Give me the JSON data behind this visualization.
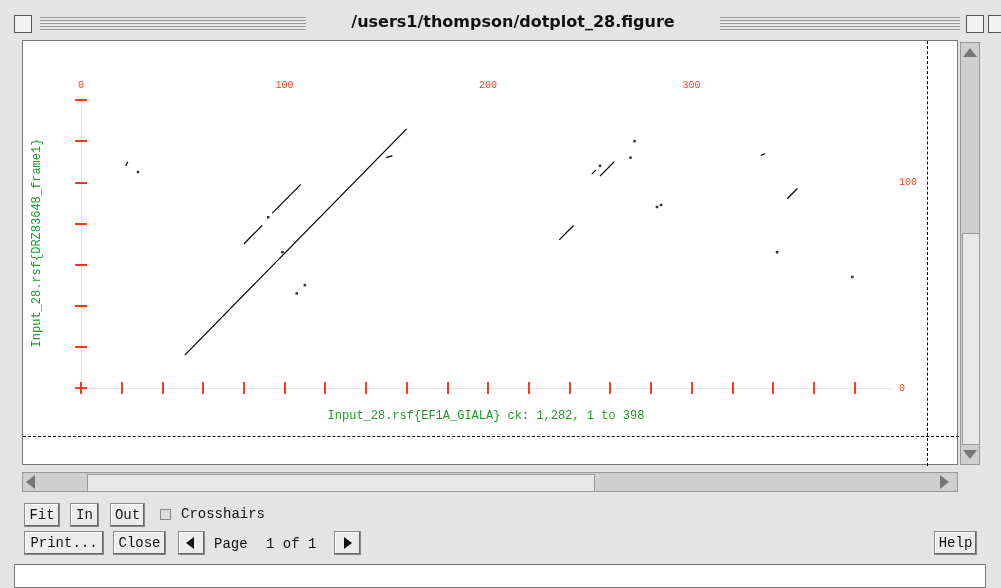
{
  "chart_data": {
    "type": "line",
    "title": "/users1/thompson/dotplot_28.figure",
    "xlabel": "Input_28.rsf{EF1A_GIALA} ck: 1,282, 1 to 398",
    "ylabel": "Input_28.rsf{DRZ83648_frame1}",
    "annotations": [
      "Fit",
      "In",
      "Out",
      "Crosshairs",
      "Print...",
      "Close",
      "Page",
      "1 of 1",
      "Help"
    ],
    "xlim": [
      0,
      398
    ],
    "xticks": [
      0,
      {
        "value": 20,
        "label": null
      },
      {
        "value": 40,
        "label": null
      },
      {
        "value": 60,
        "label": null
      },
      {
        "value": 80,
        "label": null
      },
      100,
      {
        "value": 120,
        "label": null
      },
      {
        "value": 140,
        "label": null
      },
      {
        "value": 160,
        "label": null
      },
      {
        "value": 180,
        "label": null
      },
      200,
      {
        "value": 220,
        "label": null
      },
      {
        "value": 240,
        "label": null
      },
      {
        "value": 260,
        "label": null
      },
      {
        "value": 280,
        "label": null
      },
      300,
      {
        "value": 320,
        "label": null
      },
      {
        "value": 340,
        "label": null
      },
      {
        "value": 360,
        "label": null
      },
      {
        "value": 380,
        "label": null
      }
    ],
    "ylim": [
      0,
      141
    ],
    "yticks": [
      0,
      {
        "value": 20,
        "label": null
      },
      {
        "value": 40,
        "label": null
      },
      {
        "value": 60,
        "label": null
      },
      {
        "value": 80,
        "label": null
      },
      100,
      {
        "value": 120,
        "label": null
      },
      {
        "value": 140,
        "label": null
      }
    ],
    "grid": false,
    "series": [
      {
        "color": "#000000",
        "x": [
          51,
          160
        ],
        "values": [
          16,
          126
        ]
      },
      {
        "color": "#000000",
        "x": [
          80,
          89
        ],
        "values": [
          70,
          79
        ]
      },
      {
        "color": "#000000",
        "x": [
          94,
          108
        ],
        "values": [
          85,
          99
        ]
      },
      {
        "color": "#000000",
        "x": [
          22,
          23
        ],
        "values": [
          108,
          110
        ]
      },
      {
        "color": "#000000",
        "x": [
          150,
          153
        ],
        "values": [
          112,
          113
        ]
      },
      {
        "color": "#000000",
        "x": [
          235,
          242
        ],
        "values": [
          72,
          79
        ]
      },
      {
        "color": "#000000",
        "x": [
          255,
          262
        ],
        "values": [
          103,
          110
        ]
      },
      {
        "color": "#000000",
        "x": [
          251,
          253
        ],
        "values": [
          104,
          106
        ]
      },
      {
        "color": "#000000",
        "x": [
          334,
          336
        ],
        "values": [
          113,
          114
        ]
      },
      {
        "color": "#000000",
        "x": [
          347,
          352
        ],
        "values": [
          92,
          97
        ]
      },
      {
        "type": "scatter",
        "color": "#000000",
        "x": [
          28,
          92,
          99,
          106,
          110,
          255,
          270,
          272,
          283,
          285,
          342,
          379
        ],
        "values": [
          105,
          83,
          66,
          46,
          50,
          108,
          112,
          120,
          88,
          89,
          66,
          54
        ]
      }
    ]
  }
}
